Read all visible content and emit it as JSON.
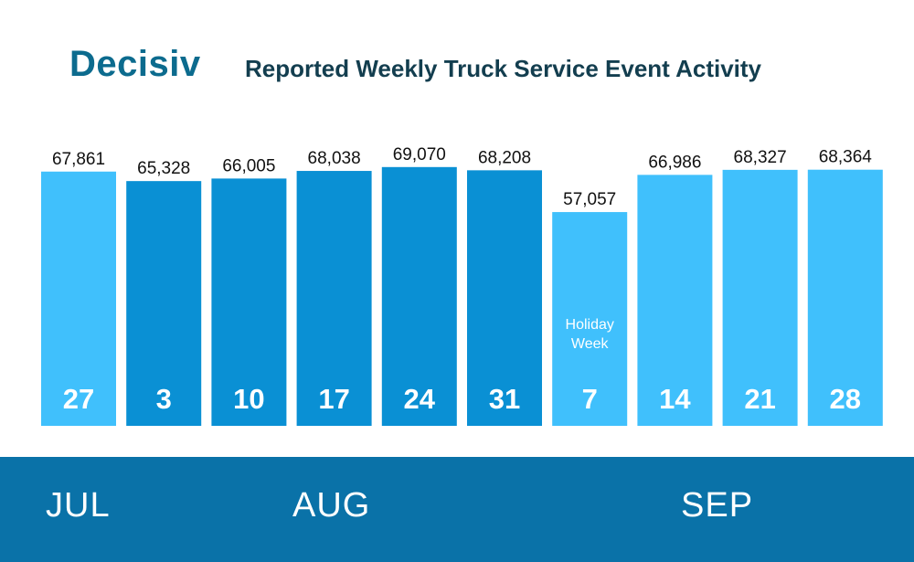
{
  "brand": {
    "name": "Decisiv"
  },
  "chart_data": {
    "type": "bar",
    "title": "Reported Weekly Truck Service Event Activity",
    "categories": [
      "27",
      "3",
      "10",
      "17",
      "24",
      "31",
      "7",
      "14",
      "21",
      "28"
    ],
    "values": [
      67861,
      65328,
      66005,
      68038,
      69070,
      68208,
      57057,
      66986,
      68327,
      68364
    ],
    "value_labels": [
      "67,861",
      "65,328",
      "66,005",
      "68,038",
      "69,070",
      "68,208",
      "57,057",
      "66,986",
      "68,327",
      "68,364"
    ],
    "months": [
      "JUL",
      "AUG",
      "SEP"
    ],
    "month_of_bar": [
      "JUL",
      "AUG",
      "AUG",
      "AUG",
      "AUG",
      "AUG",
      "SEP",
      "SEP",
      "SEP",
      "SEP"
    ],
    "annotations": [
      {
        "category_index": 6,
        "text_lines": [
          "Holiday",
          "Week"
        ]
      }
    ],
    "colors": {
      "jul_sep": "#40c0fc",
      "aug": "#0a90d4",
      "band": "#0a72a8",
      "text": "#111111",
      "title": "#133e4f",
      "brand": "#0c6b8e"
    },
    "ylim": [
      0,
      70000
    ],
    "xlabel": "",
    "ylabel": ""
  }
}
